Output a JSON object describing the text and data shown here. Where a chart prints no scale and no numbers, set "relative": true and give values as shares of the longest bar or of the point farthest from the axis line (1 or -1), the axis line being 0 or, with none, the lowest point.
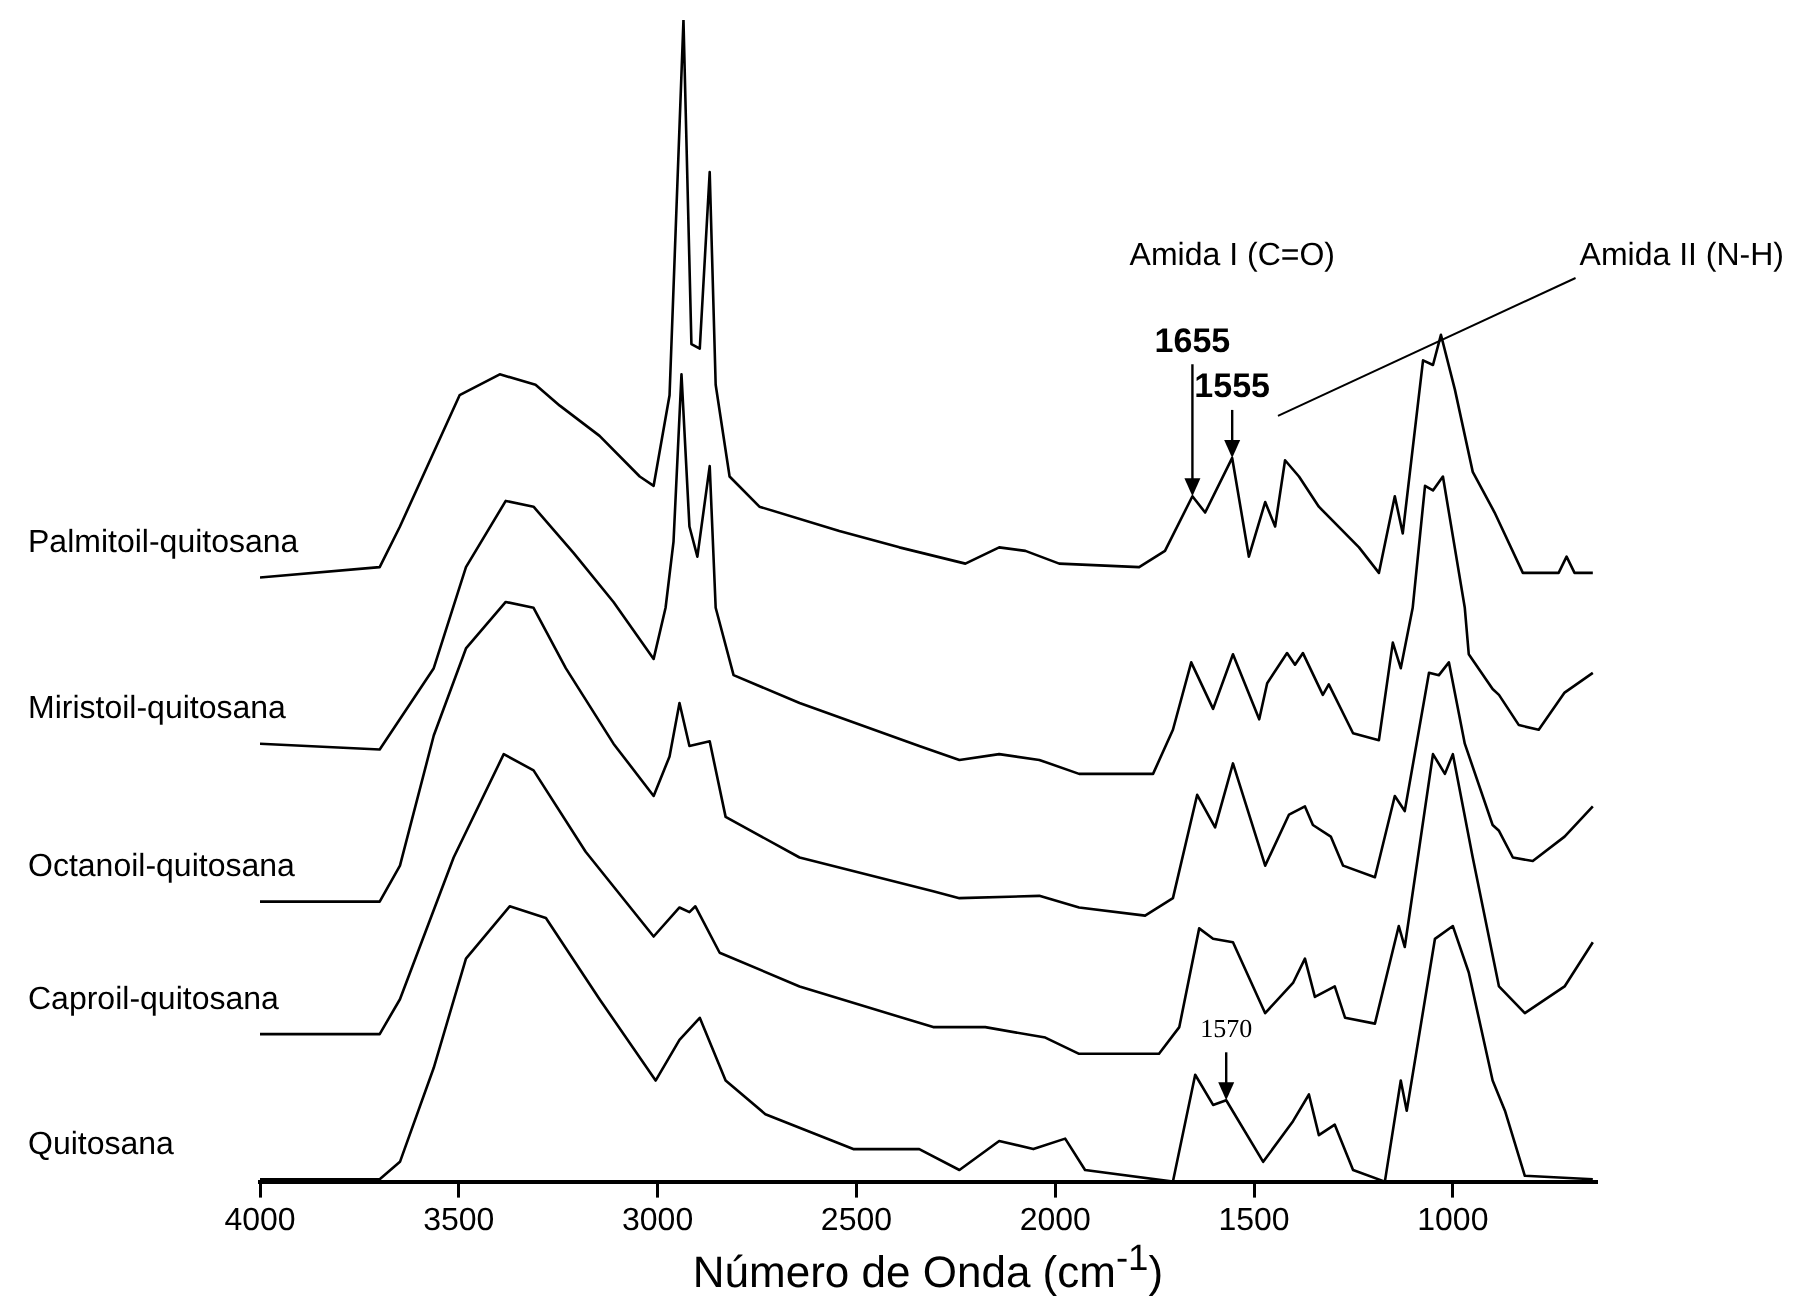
{
  "chart_data": {
    "type": "line",
    "xlabel": "Número de Onda (cm$^{-1}$)",
    "relative": true,
    "xlim": [
      4000,
      640
    ],
    "xticks": [
      4000,
      3500,
      3000,
      2500,
      2000,
      1500,
      1000
    ],
    "grid": false,
    "legend": false,
    "marker": "none",
    "line_style": "solid",
    "annotations": [
      "Amida I (C=O)",
      "Amida II (N-H)",
      {
        "text": "1655",
        "x": 1655,
        "y": 0.59
      },
      {
        "text": "1555",
        "x": 1555,
        "y": 0.623
      },
      {
        "text": "1570",
        "x": 1570,
        "y": 0.07
      }
    ],
    "series": [
      {
        "name": "Palmitoil-quitosana",
        "color": "#000000",
        "x": [
          4000,
          3699,
          3648,
          3498,
          3397,
          3307,
          3246,
          3146,
          3045,
          3010,
          2970,
          2935,
          2915,
          2894,
          2869,
          2854,
          2819,
          2744,
          2543,
          2392,
          2226,
          2141,
          2075,
          1990,
          1789,
          1724,
          1655,
          1623,
          1555,
          1513,
          1472,
          1447,
          1422,
          1387,
          1337,
          1236,
          1186,
          1146,
          1126,
          1075,
          1050,
          1030,
          995,
          950,
          895,
          824,
          734,
          714,
          694,
          648
        ],
        "values": [
          0.52,
          0.529,
          0.564,
          0.677,
          0.695,
          0.686,
          0.668,
          0.642,
          0.607,
          0.599,
          0.677,
          1.0,
          0.721,
          0.717,
          0.869,
          0.686,
          0.607,
          0.581,
          0.56,
          0.546,
          0.532,
          0.546,
          0.543,
          0.532,
          0.529,
          0.543,
          0.59,
          0.576,
          0.623,
          0.538,
          0.585,
          0.564,
          0.621,
          0.607,
          0.581,
          0.546,
          0.524,
          0.59,
          0.558,
          0.707,
          0.703,
          0.729,
          0.682,
          0.611,
          0.576,
          0.524,
          0.524,
          0.538,
          0.524,
          0.524
        ]
      },
      {
        "name": "Miristoil-quitosana",
        "color": "#000000",
        "x": [
          4000,
          3699,
          3563,
          3482,
          3382,
          3312,
          3211,
          3111,
          3010,
          2980,
          2960,
          2940,
          2920,
          2900,
          2869,
          2854,
          2809,
          2643,
          2342,
          2241,
          2141,
          2040,
          1940,
          1754,
          1704,
          1658,
          1603,
          1553,
          1487,
          1467,
          1417,
          1397,
          1377,
          1327,
          1312,
          1251,
          1186,
          1151,
          1131,
          1101,
          1070,
          1050,
          1025,
          970,
          960,
          900,
          884,
          834,
          784,
          719,
          648
        ],
        "values": [
          0.377,
          0.372,
          0.442,
          0.529,
          0.586,
          0.581,
          0.541,
          0.499,
          0.45,
          0.494,
          0.551,
          0.695,
          0.564,
          0.538,
          0.616,
          0.494,
          0.436,
          0.412,
          0.375,
          0.363,
          0.368,
          0.363,
          0.351,
          0.351,
          0.389,
          0.447,
          0.407,
          0.454,
          0.398,
          0.429,
          0.455,
          0.445,
          0.455,
          0.419,
          0.428,
          0.386,
          0.38,
          0.464,
          0.442,
          0.494,
          0.599,
          0.595,
          0.607,
          0.494,
          0.454,
          0.424,
          0.419,
          0.393,
          0.389,
          0.421,
          0.438
        ]
      },
      {
        "name": "Octanoil-quitosana",
        "color": "#000000",
        "x": [
          4000,
          3699,
          3648,
          3563,
          3482,
          3382,
          3312,
          3231,
          3111,
          3010,
          2970,
          2945,
          2920,
          2869,
          2829,
          2643,
          2307,
          2241,
          2040,
          1940,
          1774,
          1704,
          1643,
          1598,
          1553,
          1472,
          1412,
          1372,
          1352,
          1307,
          1276,
          1196,
          1146,
          1121,
          1060,
          1035,
          1010,
          970,
          900,
          884,
          849,
          799,
          719,
          648
        ],
        "values": [
          0.241,
          0.241,
          0.272,
          0.384,
          0.459,
          0.499,
          0.494,
          0.442,
          0.377,
          0.332,
          0.366,
          0.412,
          0.375,
          0.379,
          0.314,
          0.279,
          0.25,
          0.244,
          0.246,
          0.236,
          0.229,
          0.244,
          0.333,
          0.305,
          0.36,
          0.272,
          0.316,
          0.323,
          0.307,
          0.297,
          0.272,
          0.262,
          0.332,
          0.319,
          0.438,
          0.436,
          0.447,
          0.377,
          0.307,
          0.302,
          0.279,
          0.276,
          0.297,
          0.323
        ]
      },
      {
        "name": "Caproil-quitosana",
        "color": "#000000",
        "x": [
          4000,
          3699,
          3648,
          3513,
          3387,
          3312,
          3181,
          3010,
          2945,
          2920,
          2905,
          2844,
          2643,
          2307,
          2176,
          2025,
          1940,
          1739,
          1688,
          1638,
          1603,
          1553,
          1472,
          1402,
          1372,
          1347,
          1297,
          1271,
          1196,
          1136,
          1121,
          1050,
          1020,
          1000,
          950,
          884,
          819,
          719,
          648
        ],
        "values": [
          0.127,
          0.127,
          0.157,
          0.279,
          0.368,
          0.354,
          0.284,
          0.211,
          0.236,
          0.232,
          0.237,
          0.197,
          0.168,
          0.133,
          0.133,
          0.124,
          0.11,
          0.11,
          0.133,
          0.218,
          0.209,
          0.206,
          0.145,
          0.171,
          0.192,
          0.159,
          0.168,
          0.141,
          0.136,
          0.22,
          0.202,
          0.368,
          0.351,
          0.368,
          0.279,
          0.168,
          0.145,
          0.168,
          0.206
        ]
      },
      {
        "name": "Quitosana",
        "color": "#000000",
        "x": [
          4000,
          3699,
          3648,
          3563,
          3482,
          3372,
          3281,
          3146,
          3005,
          2945,
          2894,
          2829,
          2729,
          2508,
          2342,
          2241,
          2141,
          2055,
          1975,
          1925,
          1704,
          1648,
          1603,
          1570,
          1477,
          1402,
          1362,
          1337,
          1297,
          1251,
          1171,
          1131,
          1116,
          1045,
          1000,
          960,
          900,
          869,
          819,
          648
        ],
        "values": [
          0.002,
          0.002,
          0.017,
          0.098,
          0.192,
          0.237,
          0.227,
          0.157,
          0.087,
          0.122,
          0.141,
          0.087,
          0.058,
          0.028,
          0.028,
          0.01,
          0.035,
          0.028,
          0.037,
          0.01,
          0.0,
          0.092,
          0.066,
          0.07,
          0.017,
          0.052,
          0.075,
          0.04,
          0.049,
          0.01,
          0.0,
          0.087,
          0.061,
          0.209,
          0.22,
          0.18,
          0.087,
          0.061,
          0.005,
          0.002
        ]
      }
    ]
  }
}
